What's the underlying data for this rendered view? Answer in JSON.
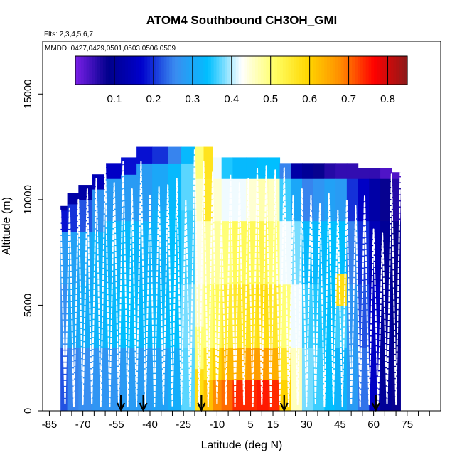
{
  "chart_data": {
    "type": "heatmap",
    "title": "ATOM4 Southbound CH3OH_GMI",
    "subtitle_flights": "Flts: 2,3,4,5,6,7",
    "subtitle_dates": "MMDD: 0427,0429,0501,0503,0506,0509",
    "xlabel": "Latitude (deg N)",
    "ylabel": "Altitude (m)",
    "xlim": [
      -88,
      90
    ],
    "ylim": [
      0,
      17500
    ],
    "x_ticks": [
      -85,
      -70,
      -55,
      -40,
      -25,
      -10,
      5,
      15,
      30,
      45,
      60,
      75
    ],
    "x_ticks_visible": [
      "-85",
      "-70",
      "-55",
      "-40",
      "-25",
      "-10",
      "5",
      "15",
      "30",
      "45",
      "60",
      "75"
    ],
    "x_minor_tick_step": 5,
    "y_ticks": [
      0,
      5000,
      10000,
      15000
    ],
    "y_ticks_visible": [
      "0",
      "5000",
      "10000",
      "15000"
    ],
    "colorbar": {
      "min": 0.0,
      "max": 0.85,
      "ticks": [
        0.1,
        0.2,
        0.3,
        0.4,
        0.5,
        0.6,
        0.7,
        0.8
      ],
      "tick_labels": [
        "0.1",
        "0.2",
        "0.3",
        "0.4",
        "0.5",
        "0.6",
        "0.7",
        "0.8"
      ],
      "colors": [
        "#7a1fe8",
        "#00008b",
        "#0000cd",
        "#3a8cf0",
        "#00bfff",
        "#ffffff",
        "#ffff66",
        "#ffd700",
        "#ff8c00",
        "#ff0000",
        "#8b1a1a"
      ]
    },
    "profile_markers_lat": [
      -53,
      -43,
      -17,
      20,
      61
    ],
    "columns": [
      {
        "lat0": -80,
        "lat1": -77,
        "top": 9700,
        "segments": [
          [
            0,
            0.22
          ],
          [
            3000,
            0.26
          ],
          [
            6000,
            0.28
          ],
          [
            8500,
            0.18
          ],
          [
            9500,
            0.12
          ]
        ]
      },
      {
        "lat0": -77,
        "lat1": -72,
        "top": 10300,
        "segments": [
          [
            0,
            0.25
          ],
          [
            3000,
            0.3
          ],
          [
            6000,
            0.29
          ],
          [
            8500,
            0.2
          ],
          [
            9800,
            0.12
          ]
        ]
      },
      {
        "lat0": -72,
        "lat1": -66,
        "top": 10700,
        "segments": [
          [
            0,
            0.26
          ],
          [
            3000,
            0.31
          ],
          [
            6000,
            0.3
          ],
          [
            8500,
            0.22
          ],
          [
            10000,
            0.12
          ]
        ]
      },
      {
        "lat0": -66,
        "lat1": -60,
        "top": 11200,
        "segments": [
          [
            0,
            0.27
          ],
          [
            3000,
            0.32
          ],
          [
            6000,
            0.32
          ],
          [
            8500,
            0.27
          ],
          [
            10500,
            0.14
          ]
        ]
      },
      {
        "lat0": -60,
        "lat1": -53,
        "top": 11700,
        "segments": [
          [
            0,
            0.27
          ],
          [
            3000,
            0.33
          ],
          [
            6000,
            0.32
          ],
          [
            9000,
            0.28
          ],
          [
            11000,
            0.16
          ]
        ]
      },
      {
        "lat0": -53,
        "lat1": -46,
        "top": 12000,
        "segments": [
          [
            0,
            0.28
          ],
          [
            3000,
            0.34
          ],
          [
            6000,
            0.33
          ],
          [
            9000,
            0.28
          ],
          [
            11200,
            0.18
          ]
        ]
      },
      {
        "lat0": -46,
        "lat1": -39,
        "top": 12500,
        "segments": [
          [
            0,
            0.28
          ],
          [
            3000,
            0.33
          ],
          [
            6000,
            0.32
          ],
          [
            9000,
            0.28
          ],
          [
            11700,
            0.18
          ]
        ]
      },
      {
        "lat0": -39,
        "lat1": -32,
        "top": 12500,
        "segments": [
          [
            0,
            0.29
          ],
          [
            3000,
            0.33
          ],
          [
            6000,
            0.32
          ],
          [
            9500,
            0.3
          ],
          [
            11700,
            0.2
          ]
        ]
      },
      {
        "lat0": -32,
        "lat1": -26,
        "top": 12500,
        "segments": [
          [
            0,
            0.31
          ],
          [
            3000,
            0.34
          ],
          [
            6000,
            0.34
          ],
          [
            9500,
            0.33
          ],
          [
            11700,
            0.25
          ]
        ]
      },
      {
        "lat0": -26,
        "lat1": -20,
        "top": 12500,
        "segments": [
          [
            0,
            0.37
          ],
          [
            3000,
            0.38
          ],
          [
            6000,
            0.36
          ],
          [
            9500,
            0.37
          ],
          [
            11700,
            0.33
          ]
        ]
      },
      {
        "lat0": -20,
        "lat1": -16,
        "top": 12500,
        "segments": [
          [
            0,
            0.58
          ],
          [
            2000,
            0.5
          ],
          [
            4000,
            0.46
          ],
          [
            6000,
            0.44
          ],
          [
            9000,
            0.46
          ],
          [
            11000,
            0.5
          ]
        ]
      },
      {
        "lat0": -16,
        "lat1": -12,
        "top": 12500,
        "segments": [
          [
            0,
            0.62
          ],
          [
            1500,
            0.56
          ],
          [
            3000,
            0.5
          ],
          [
            6000,
            0.48
          ],
          [
            9000,
            0.56
          ],
          [
            11000,
            0.57
          ]
        ]
      },
      {
        "lat0": -12,
        "lat1": -8,
        "top": 12000,
        "segments": [
          [
            0,
            0.68
          ],
          [
            1500,
            0.6
          ],
          [
            3000,
            0.52
          ],
          [
            6000,
            0.48
          ],
          [
            9000,
            0.45
          ],
          [
            11000,
            0.42
          ]
        ]
      },
      {
        "lat0": -8,
        "lat1": -3,
        "top": 12000,
        "segments": [
          [
            0,
            0.7
          ],
          [
            1500,
            0.63
          ],
          [
            3000,
            0.55
          ],
          [
            6000,
            0.5
          ],
          [
            9000,
            0.42
          ],
          [
            11000,
            0.35
          ]
        ]
      },
      {
        "lat0": -3,
        "lat1": 3,
        "top": 12000,
        "segments": [
          [
            0,
            0.74
          ],
          [
            1500,
            0.64
          ],
          [
            3000,
            0.56
          ],
          [
            6000,
            0.52
          ],
          [
            9000,
            0.42
          ],
          [
            11000,
            0.33
          ]
        ]
      },
      {
        "lat0": 3,
        "lat1": 8,
        "top": 12000,
        "segments": [
          [
            0,
            0.74
          ],
          [
            1500,
            0.66
          ],
          [
            3000,
            0.57
          ],
          [
            6000,
            0.52
          ],
          [
            9000,
            0.45
          ],
          [
            11000,
            0.33
          ]
        ]
      },
      {
        "lat0": 8,
        "lat1": 13,
        "top": 12000,
        "segments": [
          [
            0,
            0.75
          ],
          [
            1500,
            0.66
          ],
          [
            3000,
            0.58
          ],
          [
            6000,
            0.53
          ],
          [
            9000,
            0.47
          ],
          [
            11000,
            0.34
          ]
        ]
      },
      {
        "lat0": 13,
        "lat1": 18,
        "top": 12000,
        "segments": [
          [
            0,
            0.74
          ],
          [
            1500,
            0.64
          ],
          [
            3000,
            0.56
          ],
          [
            6000,
            0.5
          ],
          [
            9000,
            0.46
          ],
          [
            11000,
            0.34
          ]
        ]
      },
      {
        "lat0": 18,
        "lat1": 23,
        "top": 11700,
        "segments": [
          [
            0,
            0.6
          ],
          [
            1500,
            0.56
          ],
          [
            3000,
            0.5
          ],
          [
            6000,
            0.42
          ],
          [
            9000,
            0.36
          ],
          [
            11000,
            0.25
          ]
        ]
      },
      {
        "lat0": 23,
        "lat1": 28,
        "top": 11700,
        "segments": [
          [
            0,
            0.46
          ],
          [
            3000,
            0.42
          ],
          [
            6000,
            0.38
          ],
          [
            9000,
            0.3
          ],
          [
            11000,
            0.12
          ]
        ]
      },
      {
        "lat0": 28,
        "lat1": 33,
        "top": 11700,
        "segments": [
          [
            0,
            0.38
          ],
          [
            3000,
            0.36
          ],
          [
            6000,
            0.33
          ],
          [
            9000,
            0.25
          ],
          [
            11000,
            0.1
          ]
        ]
      },
      {
        "lat0": 33,
        "lat1": 38,
        "top": 11700,
        "segments": [
          [
            0,
            0.36
          ],
          [
            3000,
            0.35
          ],
          [
            6000,
            0.33
          ],
          [
            9000,
            0.27
          ],
          [
            11000,
            0.08
          ]
        ]
      },
      {
        "lat0": 38,
        "lat1": 43,
        "top": 11700,
        "segments": [
          [
            0,
            0.34
          ],
          [
            3000,
            0.34
          ],
          [
            6000,
            0.34
          ],
          [
            9000,
            0.29
          ],
          [
            11000,
            0.06
          ]
        ]
      },
      {
        "lat0": 43,
        "lat1": 48,
        "top": 11700,
        "segments": [
          [
            0,
            0.32
          ],
          [
            3000,
            0.36
          ],
          [
            5000,
            0.58
          ],
          [
            6500,
            0.34
          ],
          [
            9000,
            0.28
          ],
          [
            11000,
            0.05
          ]
        ]
      },
      {
        "lat0": 48,
        "lat1": 53,
        "top": 11700,
        "segments": [
          [
            0,
            0.28
          ],
          [
            3000,
            0.27
          ],
          [
            6000,
            0.25
          ],
          [
            9000,
            0.2
          ],
          [
            11000,
            0.05
          ]
        ]
      },
      {
        "lat0": 53,
        "lat1": 58,
        "top": 11500,
        "segments": [
          [
            0,
            0.24
          ],
          [
            3000,
            0.22
          ],
          [
            6000,
            0.2
          ],
          [
            9000,
            0.16
          ],
          [
            11000,
            0.05
          ]
        ]
      },
      {
        "lat0": 58,
        "lat1": 63,
        "top": 11500,
        "segments": [
          [
            0,
            0.16
          ],
          [
            3000,
            0.16
          ],
          [
            6000,
            0.14
          ],
          [
            9000,
            0.12
          ],
          [
            11000,
            0.05
          ]
        ]
      },
      {
        "lat0": 63,
        "lat1": 68,
        "top": 11500,
        "segments": [
          [
            0,
            0.1
          ],
          [
            3000,
            0.11
          ],
          [
            6000,
            0.1
          ],
          [
            9000,
            0.08
          ],
          [
            11000,
            0.03
          ]
        ]
      },
      {
        "lat0": 68,
        "lat1": 72,
        "top": 11300,
        "segments": [
          [
            0,
            0.08
          ],
          [
            3000,
            0.09
          ],
          [
            6000,
            0.08
          ],
          [
            9000,
            0.06
          ],
          [
            11000,
            0.03
          ]
        ]
      }
    ],
    "flight_track_lat": [
      -82,
      -80,
      -78,
      -76,
      -74,
      -72,
      -70,
      -68,
      -66,
      -64,
      -62,
      -60,
      -58,
      -56,
      -54,
      -52,
      -50,
      -48,
      -46,
      -44,
      -42,
      -40,
      -38,
      -36,
      -34,
      -32,
      -30,
      -28,
      -26,
      -24,
      -22,
      -20,
      -18,
      -16,
      -14,
      -12,
      -10,
      -8,
      -6,
      -4,
      -2,
      0,
      2,
      4,
      6,
      8,
      10,
      12,
      14,
      16,
      18,
      20,
      22,
      24,
      26,
      28,
      30,
      32,
      34,
      36,
      38,
      40,
      42,
      44,
      46,
      48,
      50,
      52,
      54,
      56,
      58,
      60,
      62,
      64,
      66,
      68,
      70,
      72
    ],
    "flight_track_alt": [
      3000,
      9500,
      300,
      9600,
      200,
      10000,
      300,
      10500,
      300,
      11000,
      200,
      11700,
      200,
      10800,
      300,
      11800,
      200,
      10500,
      200,
      11800,
      300,
      10200,
      200,
      10600,
      300,
      10700,
      200,
      11000,
      300,
      10000,
      200,
      12400,
      200,
      11800,
      200,
      11300,
      300,
      9000,
      300,
      11200,
      200,
      10800,
      300,
      11000,
      200,
      11500,
      300,
      11600,
      200,
      11400,
      300,
      11500,
      200,
      10200,
      300,
      10500,
      200,
      10200,
      300,
      9800,
      200,
      10300,
      300,
      9500,
      200,
      10000,
      300,
      9700,
      200,
      10200,
      300,
      8600,
      200,
      8400,
      300,
      11200,
      300,
      11300
    ]
  }
}
